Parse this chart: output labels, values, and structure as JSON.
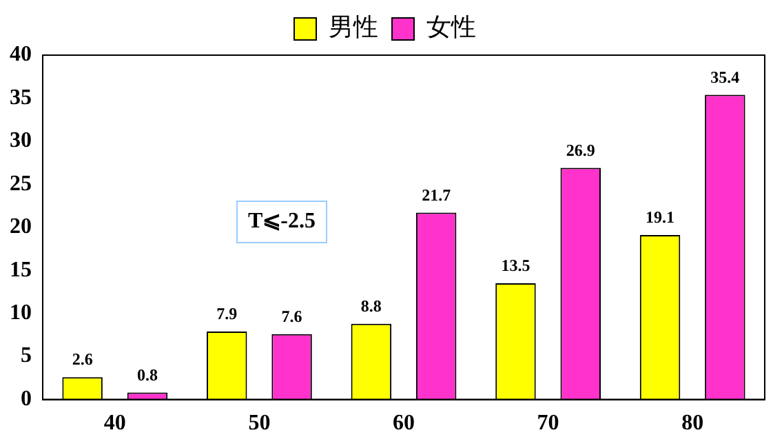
{
  "chart_data": {
    "type": "bar",
    "categories": [
      "40",
      "50",
      "60",
      "70",
      "80"
    ],
    "series": [
      {
        "name": "男性",
        "color": "#ffff00",
        "values": [
          2.6,
          7.9,
          8.8,
          13.5,
          19.1
        ]
      },
      {
        "name": "女性",
        "color": "#ff33cc",
        "values": [
          0.8,
          7.6,
          21.7,
          26.9,
          35.4
        ]
      }
    ],
    "ylim": [
      0,
      40
    ],
    "yticks": [
      0,
      5,
      10,
      15,
      20,
      25,
      30,
      35,
      40
    ],
    "grid": false,
    "legend": "top",
    "data_labels": true,
    "annotations": [
      "T⩽-2.5"
    ]
  }
}
